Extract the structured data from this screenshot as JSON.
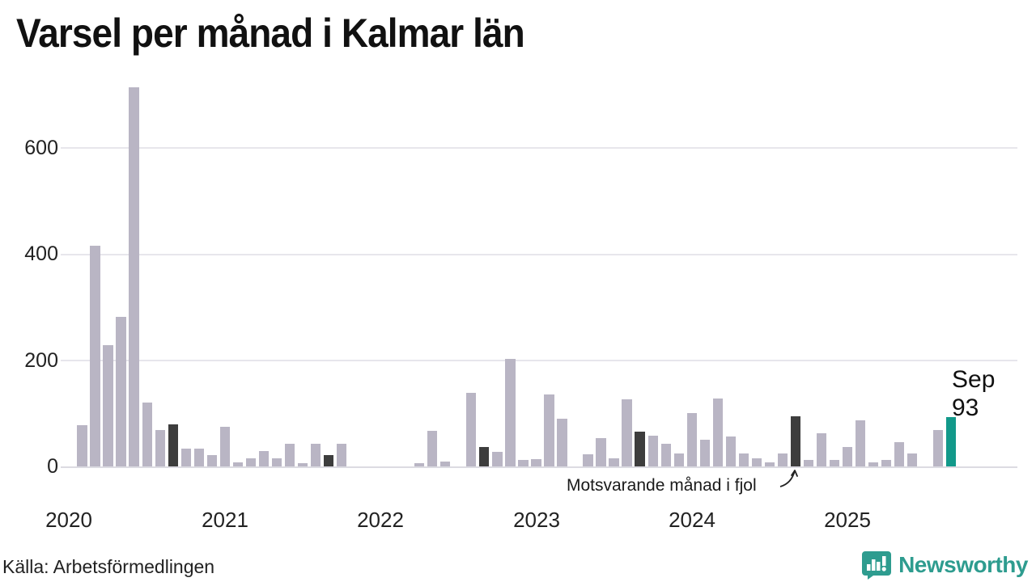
{
  "title": "Varsel per månad i Kalmar län",
  "y_axis": {
    "ticks": [
      "0",
      "200",
      "400",
      "600"
    ]
  },
  "x_axis": {
    "ticks": [
      "2020",
      "2021",
      "2022",
      "2023",
      "2024",
      "2025"
    ]
  },
  "annotation": {
    "text": "Motsvarande månad i fjol"
  },
  "current_label": {
    "month": "Sep",
    "value": "93"
  },
  "footer": {
    "source": "Källa: Arbetsförmedlingen",
    "brand": "Newsworthy"
  },
  "colors": {
    "bar": "#b9b5c4",
    "compare": "#3d3d3d",
    "current": "#12998a",
    "brand": "#2E9C8F"
  },
  "chart_data": {
    "type": "bar",
    "title": "Varsel per månad i Kalmar län",
    "xlabel": "",
    "ylabel": "",
    "ylim": [
      0,
      720
    ],
    "yticks": [
      0,
      200,
      400,
      600
    ],
    "grid": true,
    "legend_position": "none",
    "highlight_rule": "September bars dark (#3d3d3d); latest month Sep 2025 teal (#12998a), labeled 'Sep 93'; annotation arrow points to Sep 2024",
    "x": [
      "2020-01",
      "2020-02",
      "2020-03",
      "2020-04",
      "2020-05",
      "2020-06",
      "2020-07",
      "2020-08",
      "2020-09",
      "2020-10",
      "2020-11",
      "2020-12",
      "2021-01",
      "2021-02",
      "2021-03",
      "2021-04",
      "2021-05",
      "2021-06",
      "2021-07",
      "2021-08",
      "2021-09",
      "2021-10",
      "2021-11",
      "2021-12",
      "2022-01",
      "2022-02",
      "2022-03",
      "2022-04",
      "2022-05",
      "2022-06",
      "2022-07",
      "2022-08",
      "2022-09",
      "2022-10",
      "2022-11",
      "2022-12",
      "2023-01",
      "2023-02",
      "2023-03",
      "2023-04",
      "2023-05",
      "2023-06",
      "2023-07",
      "2023-08",
      "2023-09",
      "2023-10",
      "2023-11",
      "2023-12",
      "2024-01",
      "2024-02",
      "2024-03",
      "2024-04",
      "2024-05",
      "2024-06",
      "2024-07",
      "2024-08",
      "2024-09",
      "2024-10",
      "2024-11",
      "2024-12",
      "2025-01",
      "2025-02",
      "2025-03",
      "2025-04",
      "2025-05",
      "2025-06",
      "2025-07",
      "2025-08",
      "2025-09"
    ],
    "values": [
      0,
      77,
      415,
      228,
      281,
      714,
      120,
      68,
      79,
      33,
      34,
      22,
      74,
      7,
      15,
      29,
      16,
      43,
      6,
      43,
      22,
      43,
      0,
      0,
      0,
      0,
      0,
      6,
      67,
      9,
      0,
      138,
      36,
      28,
      203,
      13,
      14,
      135,
      90,
      0,
      23,
      54,
      15,
      127,
      66,
      58,
      43,
      25,
      100,
      51,
      128,
      57,
      24,
      16,
      7,
      25,
      95,
      13,
      62,
      12,
      36,
      87,
      7,
      13,
      45,
      24,
      0,
      68,
      93
    ]
  }
}
